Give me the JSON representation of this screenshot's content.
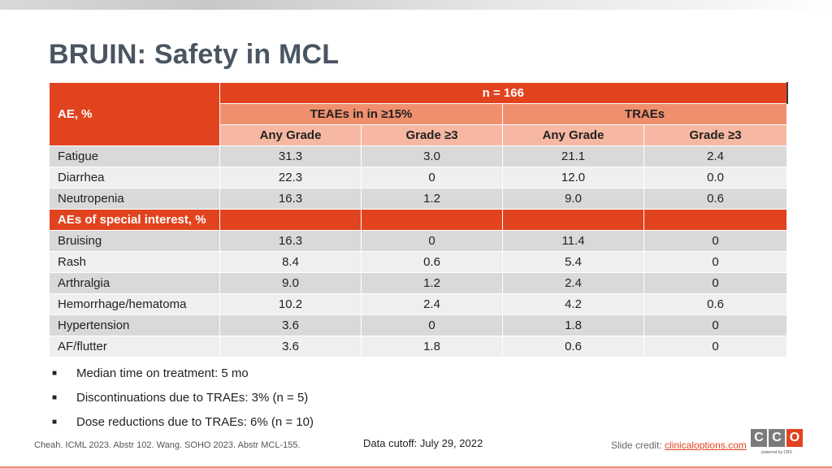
{
  "slide": {
    "title": "BRUIN: Safety in MCL"
  },
  "table": {
    "n_label": "n = 166",
    "ae_header": "AE, %",
    "teae_header": "TEAEs in in ≥15%",
    "trae_header": "TRAEs",
    "sub_headers": [
      "Any Grade",
      "Grade ≥3",
      "Any Grade",
      "Grade ≥3"
    ],
    "rows_top": [
      {
        "ae": "Fatigue",
        "teae_any": "31.3",
        "teae_g3": "3.0",
        "trae_any": "21.1",
        "trae_g3": "2.4"
      },
      {
        "ae": "Diarrhea",
        "teae_any": "22.3",
        "teae_g3": "0",
        "trae_any": "12.0",
        "trae_g3": "0.0"
      },
      {
        "ae": "Neutropenia",
        "teae_any": "16.3",
        "teae_g3": "1.2",
        "trae_any": "9.0",
        "trae_g3": "0.6"
      }
    ],
    "special_header": "AEs of special interest, %",
    "rows_special": [
      {
        "ae": "Bruising",
        "teae_any": "16.3",
        "teae_g3": "0",
        "trae_any": "11.4",
        "trae_g3": "0"
      },
      {
        "ae": "Rash",
        "teae_any": "8.4",
        "teae_g3": "0.6",
        "trae_any": "5.4",
        "trae_g3": "0"
      },
      {
        "ae": "Arthralgia",
        "teae_any": "9.0",
        "teae_g3": "1.2",
        "trae_any": "2.4",
        "trae_g3": "0"
      },
      {
        "ae": "Hemorrhage/hematoma",
        "teae_any": "10.2",
        "teae_g3": "2.4",
        "trae_any": "4.2",
        "trae_g3": "0.6"
      },
      {
        "ae": "Hypertension",
        "teae_any": "3.6",
        "teae_g3": "0",
        "trae_any": "1.8",
        "trae_g3": "0"
      },
      {
        "ae": "AF/flutter",
        "teae_any": "3.6",
        "teae_g3": "1.8",
        "trae_any": "0.6",
        "trae_g3": "0"
      }
    ]
  },
  "notes": [
    "Median time on treatment: 5 mo",
    "Discontinuations due to TRAEs: 3% (n = 5)",
    "Dose reductions due to TRAEs: 6% (n = 10)"
  ],
  "bullet_glyph": "■",
  "footer": {
    "references": "Cheah. ICML 2023. Abstr 102. Wang. SOHO 2023. Abstr MCL-155.",
    "cutoff": "Data cutoff: July 29, 2022",
    "credit_label": "Slide credit: ",
    "credit_link": "clinicaloptions.com"
  },
  "logo": {
    "letters": [
      "C",
      "C",
      "O"
    ],
    "powered": "powered by CBS"
  },
  "colors": {
    "accent": "#e2431f",
    "title": "#4a5562"
  }
}
